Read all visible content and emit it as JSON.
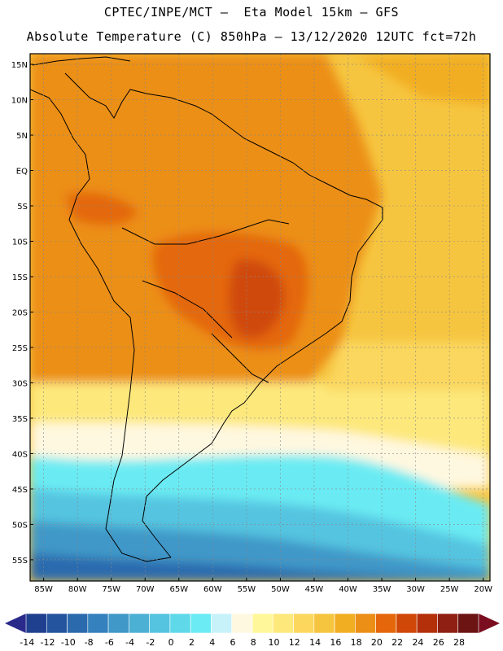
{
  "header": {
    "line1": "CPTEC/INPE/MCT –  Eta Model 15km – GFS",
    "line2": "Absolute Temperature (C) 850hPa – 13/12/2020 12UTC fct=72h"
  },
  "map": {
    "lat_labels": [
      "15N",
      "10N",
      "5N",
      "EQ",
      "5S",
      "10S",
      "15S",
      "20S",
      "25S",
      "30S",
      "35S",
      "40S",
      "45S",
      "50S",
      "55S"
    ],
    "lon_labels": [
      "85W",
      "80W",
      "75W",
      "70W",
      "65W",
      "60W",
      "55W",
      "50W",
      "45W",
      "40W",
      "35W",
      "30W",
      "25W",
      "20W"
    ],
    "lat_values": [
      15,
      10,
      5,
      0,
      -5,
      -10,
      -15,
      -20,
      -25,
      -30,
      -35,
      -40,
      -45,
      -50,
      -55
    ],
    "lon_values": [
      -85,
      -80,
      -75,
      -70,
      -65,
      -60,
      -55,
      -50,
      -45,
      -40,
      -35,
      -30,
      -25,
      -20
    ]
  },
  "colorbar": {
    "labels": [
      "-14",
      "-12",
      "-10",
      "-8",
      "-6",
      "-4",
      "-2",
      "0",
      "2",
      "4",
      "6",
      "8",
      "10",
      "12",
      "14",
      "16",
      "18",
      "20",
      "22",
      "24",
      "26",
      "28"
    ],
    "colors": [
      "#1f3f8f",
      "#24549e",
      "#2c6aae",
      "#3481bd",
      "#3f98c8",
      "#4cb0d4",
      "#55c4e0",
      "#5fd8ea",
      "#6bebf3",
      "#c8f2fa",
      "#fff8e0",
      "#fff79a",
      "#fde87c",
      "#fbd75e",
      "#f6c540",
      "#f2ae22",
      "#ec8f17",
      "#e4680b",
      "#cf4807",
      "#b3300a",
      "#8e1f12",
      "#6b1413"
    ],
    "low_arrow_color": "#2a2a8a",
    "high_arrow_color": "#7a0d1f"
  },
  "palette": {
    "ocean_warm": "#f6c540",
    "land_hot": "#ec8f17",
    "core": "#e4680b",
    "core2": "#cf4807",
    "subtrop": "#fde87c",
    "pale": "#fff8e0",
    "cold1": "#6bebf3",
    "cold2": "#55c4e0",
    "cold3": "#3f98c8",
    "cold4": "#2c6aae"
  }
}
